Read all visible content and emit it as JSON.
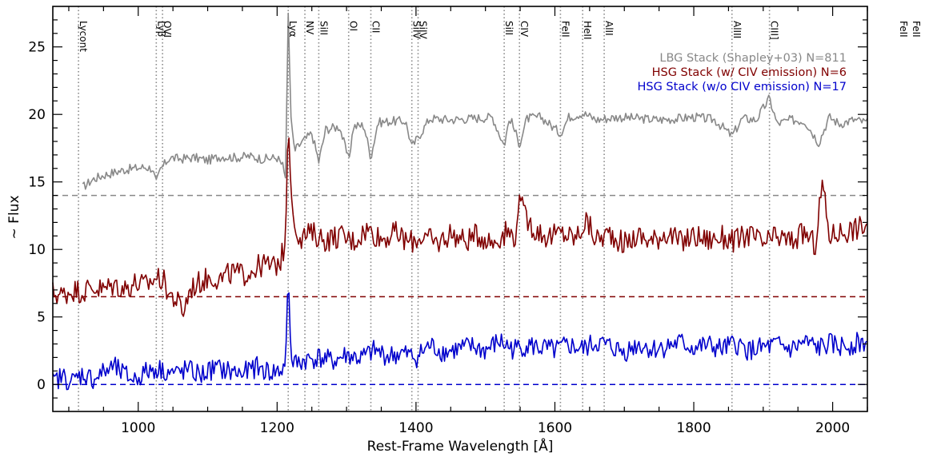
{
  "chart_data": {
    "type": "line",
    "xlabel": "Rest-Frame Wavelength [Å]",
    "ylabel": "~ Flux",
    "xlim": [
      877,
      2050
    ],
    "ylim": [
      -2,
      28
    ],
    "xticks": [
      1000,
      1200,
      1400,
      1600,
      1800,
      2000
    ],
    "yticks": [
      0,
      5,
      10,
      15,
      20,
      25
    ],
    "grid": false,
    "legend_position": "top-right",
    "line_ids": [
      {
        "label": "Lycont",
        "x": 914
      },
      {
        "label": "Lyβ",
        "x": 1026
      },
      {
        "label": "OVI",
        "x": 1035
      },
      {
        "label": "Lyα",
        "x": 1216
      },
      {
        "label": "NV",
        "x": 1240
      },
      {
        "label": "SiII",
        "x": 1260
      },
      {
        "label": "OI",
        "x": 1303
      },
      {
        "label": "CII",
        "x": 1335
      },
      {
        "label": "SiIV",
        "x": 1394
      },
      {
        "label": "SiIV",
        "x": 1403
      },
      {
        "label": "SiII",
        "x": 1527
      },
      {
        "label": "CIV",
        "x": 1549
      },
      {
        "label": "FeII",
        "x": 1608
      },
      {
        "label": "HeII",
        "x": 1640
      },
      {
        "label": "AlII",
        "x": 1671
      },
      {
        "label": "AlIII",
        "x": 1855
      },
      {
        "label": "CIII]",
        "x": 1909
      },
      {
        "label": "FeII",
        "x": 2344
      },
      {
        "label": "FeII",
        "x": 2374
      }
    ],
    "series": [
      {
        "name": "LBG Stack (Shapley+03) N=811",
        "color": "#888888",
        "baseline": 14,
        "x": [
          920,
          935,
          950,
          965,
          980,
          995,
          1010,
          1020,
          1026,
          1032,
          1045,
          1060,
          1080,
          1100,
          1120,
          1140,
          1160,
          1180,
          1200,
          1208,
          1212,
          1216,
          1220,
          1225,
          1235,
          1250,
          1260,
          1270,
          1290,
          1303,
          1310,
          1325,
          1335,
          1345,
          1365,
          1385,
          1394,
          1403,
          1420,
          1450,
          1480,
          1510,
          1527,
          1535,
          1549,
          1560,
          1580,
          1608,
          1620,
          1640,
          1660,
          1690,
          1720,
          1750,
          1780,
          1800,
          1830,
          1855,
          1870,
          1890,
          1909,
          1920,
          1940,
          1960,
          1980,
          1995,
          2010,
          2030,
          2050
        ],
        "values": [
          14.6,
          15.2,
          15.5,
          15.7,
          15.9,
          16.0,
          16.1,
          16.0,
          14.9,
          15.9,
          16.8,
          16.7,
          16.8,
          16.6,
          16.9,
          16.8,
          16.9,
          16.7,
          16.8,
          16.2,
          15.3,
          27.5,
          19.8,
          17.3,
          17.9,
          18.6,
          16.5,
          18.9,
          19.1,
          16.6,
          19.1,
          19.2,
          16.8,
          19.4,
          19.5,
          19.5,
          17.6,
          18.3,
          19.7,
          19.6,
          19.7,
          19.8,
          17.7,
          19.8,
          17.8,
          19.7,
          19.8,
          18.6,
          19.8,
          20.1,
          19.6,
          19.8,
          19.7,
          19.6,
          19.7,
          19.8,
          19.6,
          18.4,
          19.7,
          19.6,
          21.2,
          19.3,
          19.6,
          19.5,
          17.9,
          19.8,
          19.3,
          19.6,
          19.4
        ]
      },
      {
        "name": "HSG Stack (w/ CIV emission) N=6",
        "color": "#800000",
        "baseline": 6.5,
        "x": [
          877,
          890,
          905,
          920,
          935,
          950,
          965,
          980,
          995,
          1010,
          1025,
          1035,
          1045,
          1055,
          1065,
          1075,
          1090,
          1105,
          1120,
          1135,
          1150,
          1165,
          1180,
          1195,
          1205,
          1212,
          1216,
          1220,
          1226,
          1235,
          1250,
          1270,
          1290,
          1310,
          1330,
          1350,
          1370,
          1390,
          1410,
          1430,
          1450,
          1470,
          1490,
          1510,
          1530,
          1545,
          1549,
          1555,
          1570,
          1590,
          1610,
          1630,
          1645,
          1660,
          1680,
          1700,
          1720,
          1740,
          1760,
          1780,
          1800,
          1820,
          1840,
          1860,
          1880,
          1900,
          1920,
          1940,
          1960,
          1975,
          1985,
          1995,
          2010,
          2030,
          2050
        ],
        "values": [
          6.8,
          6.6,
          7.0,
          6.9,
          7.2,
          7.0,
          7.4,
          7.1,
          7.5,
          7.3,
          7.9,
          7.8,
          6.7,
          6.2,
          5.4,
          7.1,
          7.6,
          8.0,
          7.8,
          8.3,
          8.1,
          8.5,
          8.9,
          8.7,
          9.2,
          10.5,
          19.6,
          14.2,
          11.6,
          10.9,
          11.2,
          10.7,
          11.0,
          10.6,
          11.5,
          10.8,
          11.2,
          10.5,
          11.0,
          10.4,
          11.2,
          10.6,
          11.1,
          10.5,
          11.3,
          11.0,
          14.8,
          12.5,
          11.5,
          10.9,
          11.2,
          10.8,
          12.1,
          10.7,
          11.2,
          10.4,
          11.0,
          10.6,
          11.3,
          10.5,
          11.0,
          10.7,
          10.9,
          10.6,
          11.1,
          10.4,
          10.9,
          10.6,
          11.2,
          10.3,
          15.0,
          11.0,
          11.3,
          11.5,
          11.8
        ]
      },
      {
        "name": "HSG Stack (w/o CIV emission) N=17",
        "color": "#0000cc",
        "baseline": 0,
        "x": [
          877,
          890,
          905,
          920,
          935,
          950,
          965,
          980,
          995,
          1010,
          1025,
          1040,
          1055,
          1070,
          1090,
          1110,
          1130,
          1150,
          1170,
          1190,
          1205,
          1212,
          1216,
          1220,
          1226,
          1240,
          1260,
          1280,
          1300,
          1320,
          1340,
          1360,
          1380,
          1400,
          1420,
          1440,
          1460,
          1480,
          1500,
          1520,
          1540,
          1560,
          1580,
          1600,
          1620,
          1640,
          1660,
          1680,
          1700,
          1720,
          1740,
          1760,
          1780,
          1800,
          1820,
          1840,
          1860,
          1880,
          1900,
          1920,
          1940,
          1960,
          1980,
          1995,
          2010,
          2030,
          2050
        ],
        "values": [
          0.1,
          0.6,
          0.2,
          0.8,
          0.4,
          0.9,
          1.3,
          0.7,
          0.4,
          0.9,
          1.2,
          1.0,
          0.8,
          1.1,
          0.7,
          1.2,
          1.0,
          0.8,
          1.3,
          0.9,
          1.0,
          1.4,
          8.4,
          1.9,
          1.5,
          1.8,
          2.0,
          1.7,
          2.2,
          1.9,
          2.5,
          2.1,
          2.3,
          2.0,
          2.9,
          2.4,
          2.6,
          2.8,
          2.5,
          3.2,
          2.6,
          2.9,
          2.7,
          2.5,
          2.9,
          2.6,
          3.1,
          2.8,
          2.4,
          3.0,
          2.6,
          2.8,
          3.1,
          2.7,
          2.9,
          2.6,
          3.0,
          2.5,
          2.7,
          2.9,
          2.6,
          3.1,
          2.7,
          3.0,
          2.8,
          3.0,
          3.2
        ]
      }
    ]
  }
}
